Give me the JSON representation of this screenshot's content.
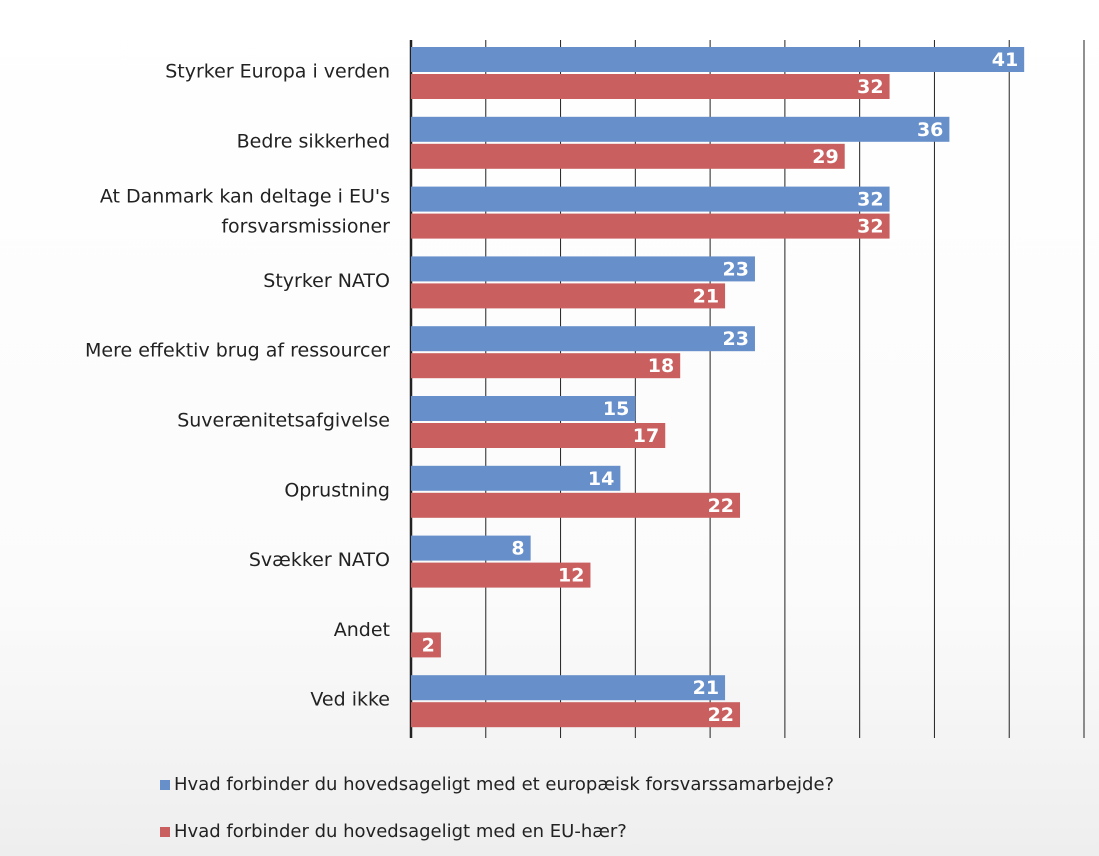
{
  "chart_data": {
    "type": "bar",
    "orientation": "horizontal",
    "categories": [
      "Styrker Europa i verden",
      "Bedre sikkerhed",
      "At Danmark kan deltage i EU's forsvarsmissioner",
      "Styrker NATO",
      "Mere effektiv brug af ressourcer",
      "Suverænitetsafgivelse",
      "Oprustning",
      "Svækker NATO",
      "Andet",
      "Ved ikke"
    ],
    "series": [
      {
        "name": "Hvad forbinder du hovedsageligt med et europæisk forsvarssamarbejde?",
        "color": "#6790cb",
        "values": [
          41,
          36,
          32,
          23,
          23,
          15,
          14,
          8,
          null,
          21
        ]
      },
      {
        "name": "Hvad forbinder du hovedsageligt med en EU-hær?",
        "color": "#c9605f",
        "values": [
          32,
          29,
          32,
          21,
          18,
          17,
          22,
          12,
          2,
          22
        ]
      }
    ],
    "xlim": [
      0,
      45
    ],
    "xticks": [
      0,
      5,
      10,
      15,
      20,
      25,
      30,
      35,
      40,
      45
    ],
    "grid": true,
    "legend": "bottom"
  }
}
